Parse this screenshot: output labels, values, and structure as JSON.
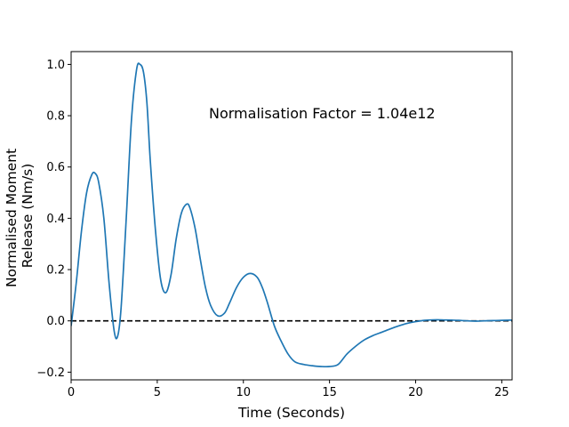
{
  "chart_data": {
    "type": "line",
    "title": "",
    "xlabel": "Time (Seconds)",
    "ylabel_lines": [
      "Normalised Moment",
      "Release (Nm/s)"
    ],
    "xlim": [
      0,
      25.6
    ],
    "ylim": [
      -0.23,
      1.05
    ],
    "x_ticks": [
      0,
      5,
      10,
      15,
      20,
      25
    ],
    "y_ticks": [
      -0.2,
      0.0,
      0.2,
      0.4,
      0.6,
      0.8,
      1.0
    ],
    "y_tick_labels": [
      "−0.2",
      "0.0",
      "0.2",
      "0.4",
      "0.6",
      "0.8",
      "1.0"
    ],
    "annotation": "Normalisation Factor = 1.04e12",
    "annotation_position": {
      "x": 8.0,
      "y": 0.81
    },
    "grid": false,
    "legend": "none",
    "reference_line": {
      "y": 0.0,
      "style": "dashed",
      "color": "#000000"
    },
    "series": [
      {
        "color": "#1f77b4",
        "x": [
          0.0,
          0.3,
          0.6,
          0.9,
          1.2,
          1.4,
          1.6,
          1.9,
          2.2,
          2.5,
          2.7,
          2.9,
          3.2,
          3.5,
          3.8,
          4.0,
          4.2,
          4.4,
          4.6,
          4.9,
          5.2,
          5.5,
          5.8,
          6.1,
          6.4,
          6.7,
          6.9,
          7.2,
          7.5,
          7.8,
          8.1,
          8.5,
          8.9,
          9.2,
          9.6,
          10.0,
          10.4,
          10.8,
          11.1,
          11.4,
          11.8,
          12.2,
          12.6,
          13.0,
          13.5,
          14.0,
          14.5,
          15.0,
          15.5,
          16.0,
          16.5,
          17.0,
          17.5,
          18.0,
          18.5,
          19.0,
          19.5,
          20.0,
          20.5,
          21.0,
          21.5,
          22.0,
          22.5,
          23.0,
          23.5,
          24.0,
          24.5,
          25.0,
          25.6
        ],
        "y": [
          -0.02,
          0.15,
          0.35,
          0.5,
          0.57,
          0.575,
          0.54,
          0.4,
          0.15,
          -0.04,
          -0.06,
          0.05,
          0.4,
          0.78,
          0.98,
          1.0,
          0.97,
          0.85,
          0.62,
          0.35,
          0.16,
          0.11,
          0.18,
          0.32,
          0.42,
          0.455,
          0.44,
          0.36,
          0.24,
          0.13,
          0.06,
          0.02,
          0.03,
          0.07,
          0.13,
          0.17,
          0.185,
          0.17,
          0.13,
          0.07,
          -0.02,
          -0.08,
          -0.13,
          -0.16,
          -0.17,
          -0.175,
          -0.178,
          -0.178,
          -0.17,
          -0.13,
          -0.1,
          -0.075,
          -0.058,
          -0.045,
          -0.032,
          -0.02,
          -0.01,
          -0.003,
          0.002,
          0.004,
          0.004,
          0.003,
          0.002,
          0.0,
          -0.001,
          0.0,
          0.001,
          0.002,
          0.003
        ]
      }
    ]
  }
}
